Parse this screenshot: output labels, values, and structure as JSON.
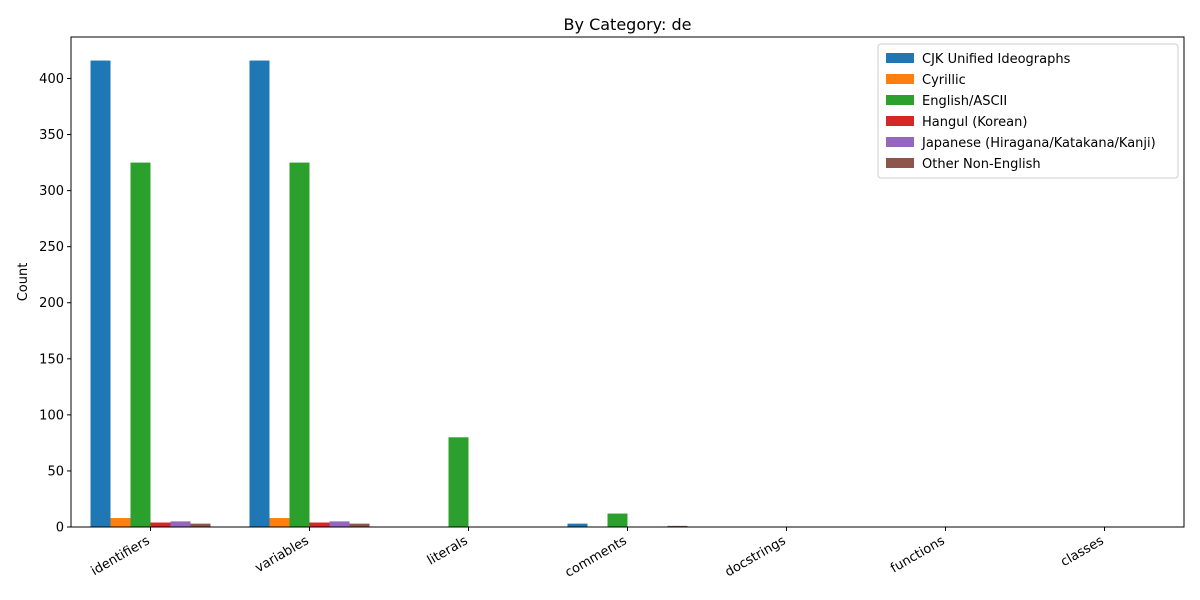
{
  "chart_data": {
    "type": "bar",
    "title": "By Category: de",
    "xlabel": "",
    "ylabel": "Count",
    "ylim": [
      0,
      437
    ],
    "yticks": [
      0,
      50,
      100,
      150,
      200,
      250,
      300,
      350,
      400
    ],
    "categories": [
      "identifiers",
      "variables",
      "literals",
      "comments",
      "docstrings",
      "functions",
      "classes"
    ],
    "legend_position": "top-right",
    "grid": false,
    "series": [
      {
        "name": "CJK Unified Ideographs",
        "color": "#1f77b4",
        "values": [
          416,
          416,
          0,
          3,
          0,
          0,
          0
        ]
      },
      {
        "name": "Cyrillic",
        "color": "#ff7f0e",
        "values": [
          8,
          8,
          0,
          0,
          0,
          0,
          0
        ]
      },
      {
        "name": "English/ASCII",
        "color": "#2ca02c",
        "values": [
          325,
          325,
          80,
          12,
          0,
          0,
          0
        ]
      },
      {
        "name": "Hangul (Korean)",
        "color": "#d62728",
        "values": [
          4,
          4,
          0,
          0,
          0,
          0,
          0
        ]
      },
      {
        "name": "Japanese (Hiragana/Katakana/Kanji)",
        "color": "#9467bd",
        "values": [
          5,
          5,
          0,
          0,
          0,
          0,
          0
        ]
      },
      {
        "name": "Other Non-English",
        "color": "#8c564b",
        "values": [
          3,
          3,
          0,
          1,
          0,
          0,
          0
        ]
      }
    ]
  }
}
